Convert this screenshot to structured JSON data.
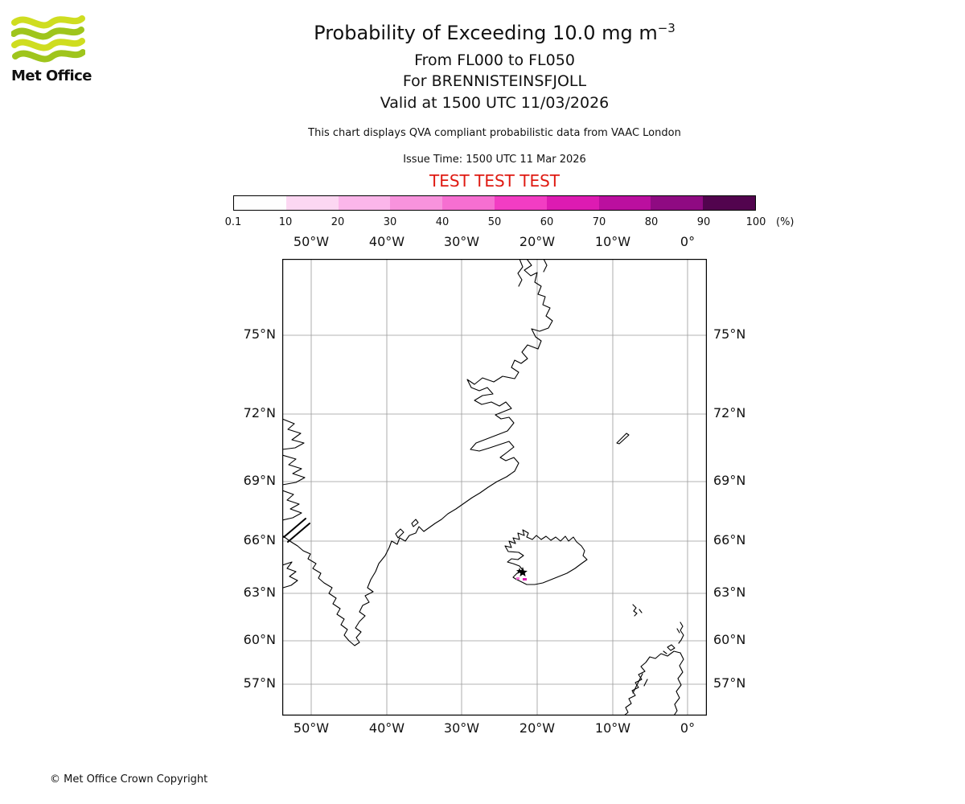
{
  "logo": {
    "text": "Met Office"
  },
  "header": {
    "title": "Probability of Exceeding 10.0 mg m",
    "title_sup": "−3",
    "line_fl": "From FL000 to FL050",
    "line_for": "For BRENNISTEINSFJOLL",
    "line_valid": "Valid at 1500 UTC 11/03/2026",
    "description": "This chart displays QVA compliant probabilistic data from VAAC London",
    "issue_time": "Issue Time: 1500 UTC 11 Mar 2026",
    "test_banner": "TEST TEST TEST"
  },
  "colorbar": {
    "tick_labels": [
      "0.1",
      "10",
      "20",
      "30",
      "40",
      "50",
      "60",
      "70",
      "80",
      "90",
      "100"
    ],
    "unit": "(%)",
    "colors": [
      "#fefefe",
      "#fcd7f2",
      "#fbb6ea",
      "#f893dd",
      "#f66fd1",
      "#f23dc3",
      "#dd1bb2",
      "#bb0f9f",
      "#8f0a82",
      "#52044e"
    ]
  },
  "map": {
    "x_ticks": [
      "50°W",
      "40°W",
      "30°W",
      "20°W",
      "10°W",
      "0°"
    ],
    "y_ticks": [
      "75°N",
      "72°N",
      "69°N",
      "66°N",
      "63°N",
      "60°N",
      "57°N"
    ],
    "marker_label": "BRENNISTEINSFJOLL source marker"
  },
  "footer": {
    "copyright": "© Met Office Crown Copyright"
  },
  "colors": {
    "test_text": "#df1a12",
    "logo_green_light": "#cfdd20",
    "logo_green_dark": "#9fc51c",
    "gridline": "#9a9a9a",
    "coastline": "#000000",
    "marker_magenta": "#e01cb5",
    "marker_pink": "#f471d6"
  }
}
